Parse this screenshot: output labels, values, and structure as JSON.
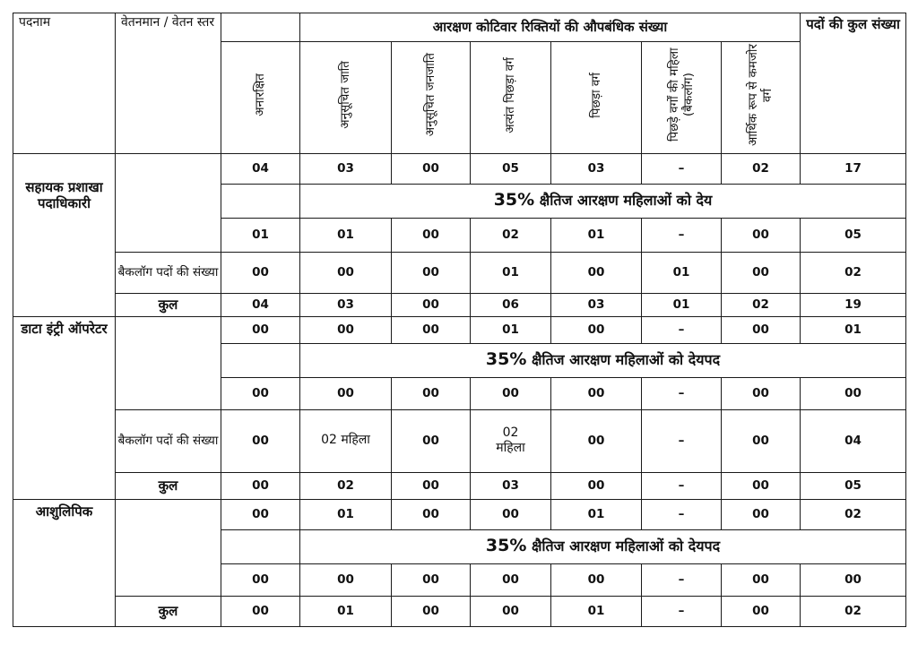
{
  "header": {
    "post": "पदनाम",
    "pay": "वेतनमान / वेतन स्तर",
    "group": "आरक्षण कोटिवार रिक्तियों की औपबंधिक संख्या",
    "total": "पदों की कुल संख्या",
    "categories": [
      "अनारक्षित",
      "अनुसूचित जाति",
      "अनुसूचित जनजाति",
      "अत्यंत पिछड़ा वर्ग",
      "पिछड़ा वर्ग",
      "पिछड़े वर्गों की महिला (बैकलॉग)",
      "आर्थिक रूप से कमजोर वर्ग"
    ]
  },
  "sections": [
    {
      "post": "सहायक प्रशाखा पदाधिकारी",
      "row1": [
        "04",
        "03",
        "00",
        "05",
        "03",
        "–",
        "02",
        "17"
      ],
      "note_pct": "35%",
      "note_text": " क्षैतिज आरक्षण महिलाओं को देय",
      "row2": [
        "01",
        "01",
        "00",
        "02",
        "01",
        "–",
        "00",
        "05"
      ],
      "backlog_label": "बैकलॉग पदों की संख्या",
      "backlog": [
        "00",
        "00",
        "00",
        "01",
        "00",
        "01",
        "00",
        "02"
      ],
      "total_label": "कुल",
      "total": [
        "04",
        "03",
        "00",
        "06",
        "03",
        "01",
        "02",
        "19"
      ]
    },
    {
      "post": "डाटा इंट्री ऑपरेटर",
      "row1": [
        "00",
        "00",
        "00",
        "01",
        "00",
        "–",
        "00",
        "01"
      ],
      "note_pct": "35%",
      "note_text": " क्षैतिज आरक्षण महिलाओं को देयपद",
      "row2": [
        "00",
        "00",
        "00",
        "00",
        "00",
        "–",
        "00",
        "00"
      ],
      "backlog_label": "बैकलॉग पदों की संख्या",
      "backlog": [
        "00",
        "02 महिला",
        "00",
        "02 महिला",
        "00",
        "–",
        "00",
        "04"
      ],
      "total_label": "कुल",
      "total": [
        "00",
        "02",
        "00",
        "03",
        "00",
        "–",
        "00",
        "05"
      ]
    },
    {
      "post": "आशुलिपिक",
      "row1": [
        "00",
        "01",
        "00",
        "00",
        "01",
        "–",
        "00",
        "02"
      ],
      "note_pct": "35%",
      "note_text": " क्षैतिज आरक्षण महिलाओं को देयपद",
      "row2": [
        "00",
        "00",
        "00",
        "00",
        "00",
        "–",
        "00",
        "00"
      ],
      "total_label": "कुल",
      "total": [
        "00",
        "01",
        "00",
        "00",
        "01",
        "–",
        "00",
        "02"
      ]
    }
  ]
}
